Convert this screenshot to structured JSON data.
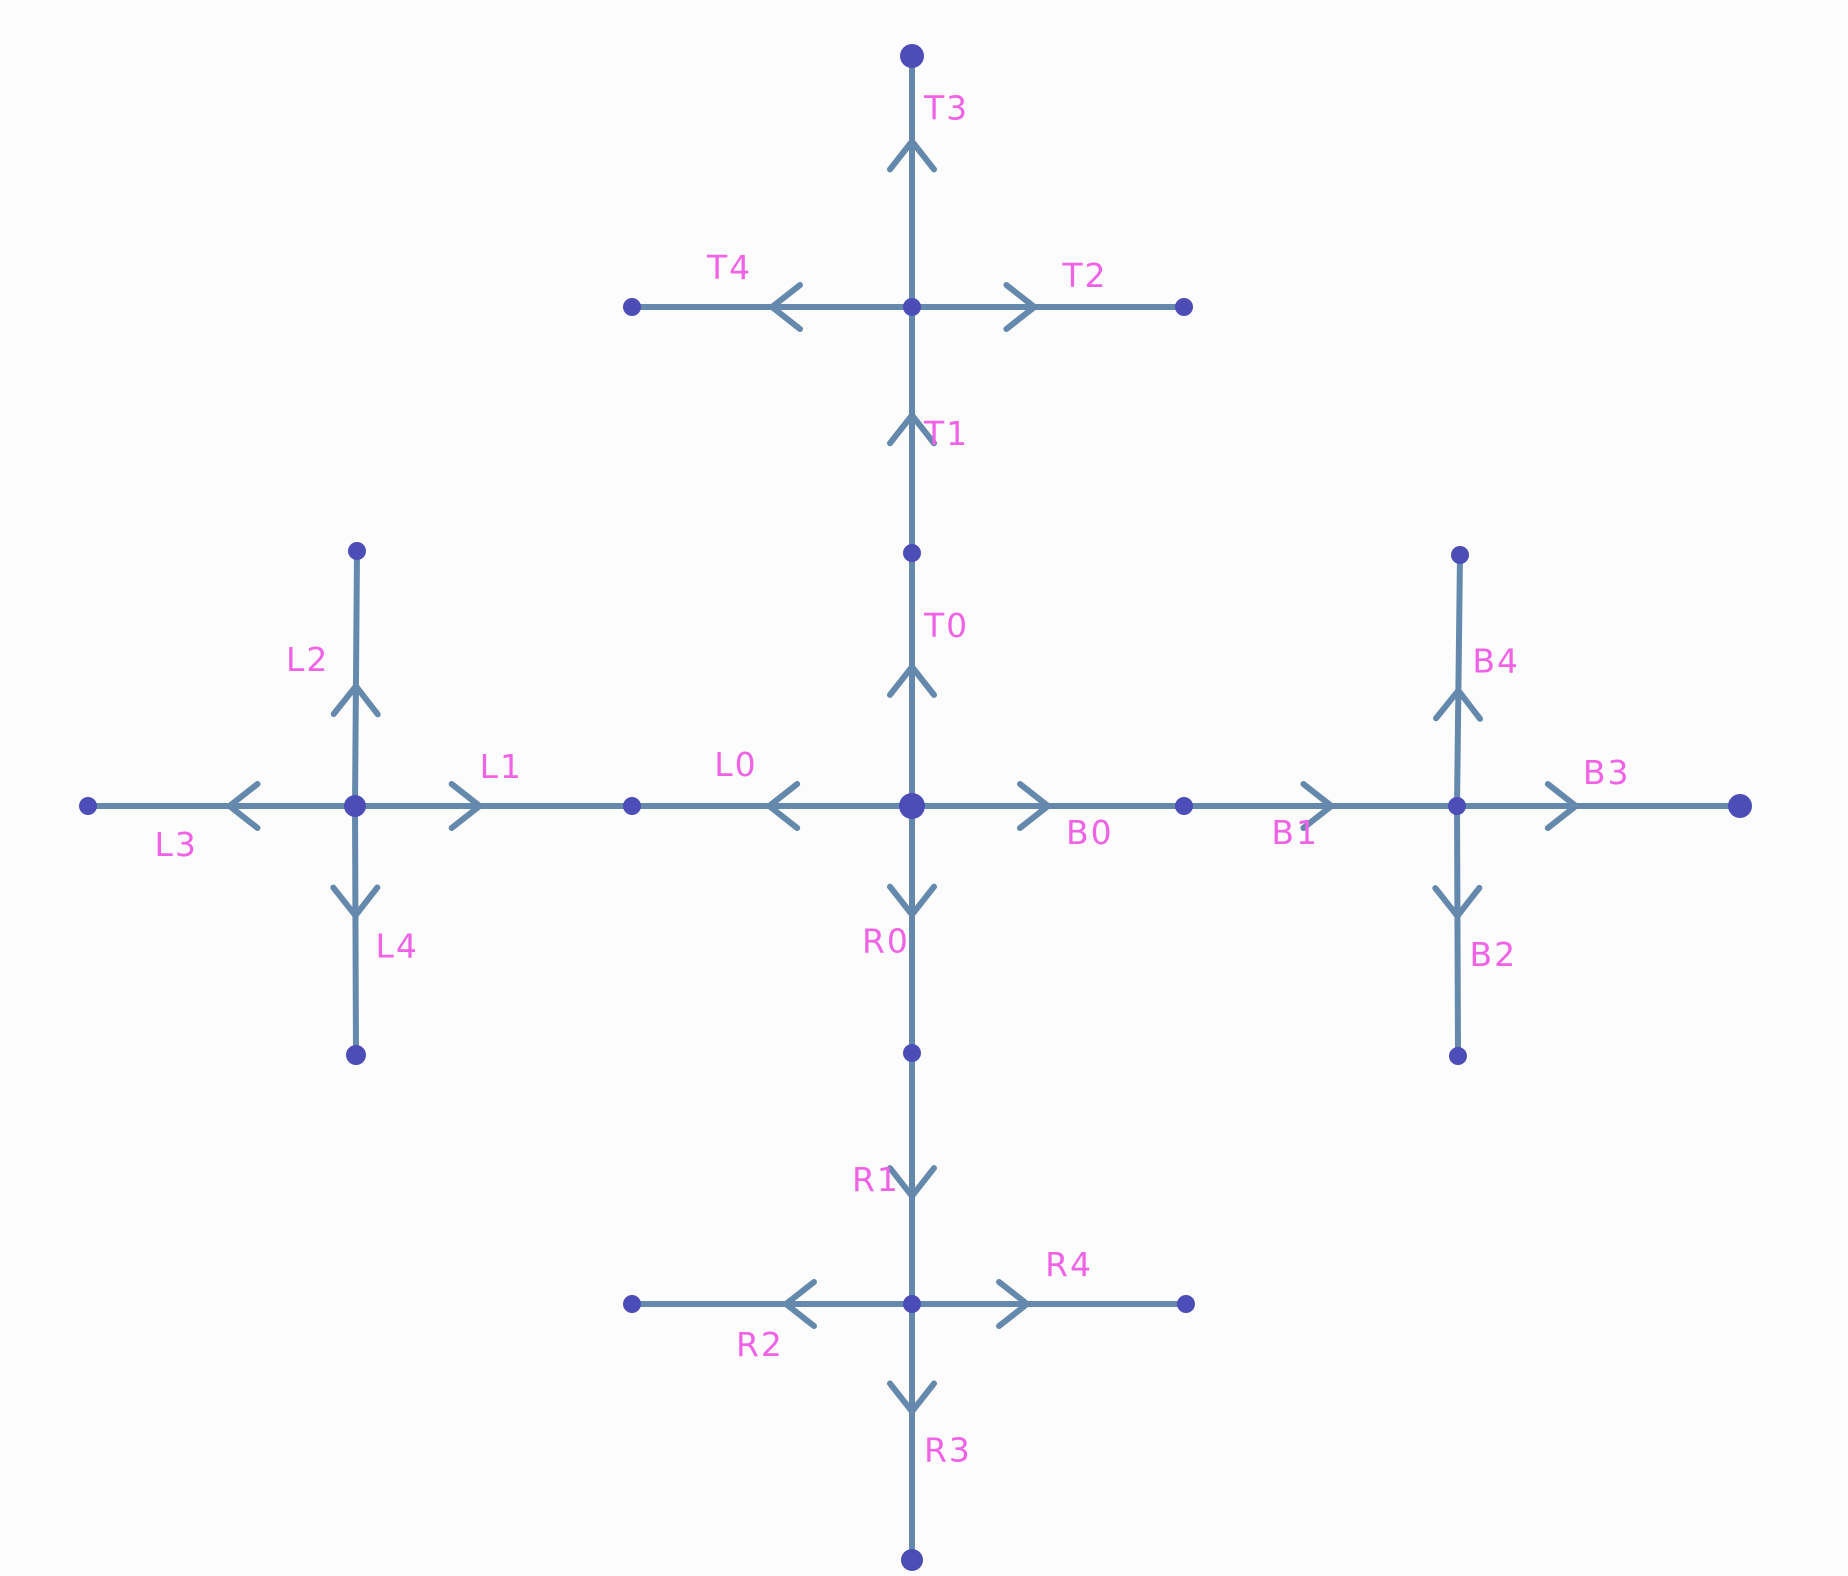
{
  "diagram": {
    "colors": {
      "edge": "#6489ad",
      "node": "#4d4db8",
      "label": "#f062e6",
      "background": "#fcfcfc"
    },
    "nodes": [
      "center",
      "T",
      "Tout",
      "Tup",
      "Tleft",
      "Tright",
      "L",
      "Lout",
      "Lup",
      "Lleft",
      "Ldown",
      "B",
      "Bout",
      "Bup",
      "Bright",
      "Bdown",
      "R",
      "Rout",
      "Rdown",
      "Rleft",
      "Rright"
    ],
    "edges": [
      {
        "id": "T0",
        "label": "T0",
        "from": "center",
        "to": "Tout"
      },
      {
        "id": "T1",
        "label": "T1",
        "from": "T",
        "to": "Tout"
      },
      {
        "id": "T2",
        "label": "T2",
        "from": "T",
        "to": "Tright"
      },
      {
        "id": "T3",
        "label": "T3",
        "from": "T",
        "to": "Tup"
      },
      {
        "id": "T4",
        "label": "T4",
        "from": "T",
        "to": "Tleft"
      },
      {
        "id": "L0",
        "label": "L0",
        "from": "center",
        "to": "Lout"
      },
      {
        "id": "L1",
        "label": "L1",
        "from": "L",
        "to": "Lout"
      },
      {
        "id": "L2",
        "label": "L2",
        "from": "L",
        "to": "Lup"
      },
      {
        "id": "L3",
        "label": "L3",
        "from": "L",
        "to": "Lleft"
      },
      {
        "id": "L4",
        "label": "L4",
        "from": "L",
        "to": "Ldown"
      },
      {
        "id": "B0",
        "label": "B0",
        "from": "center",
        "to": "Bout"
      },
      {
        "id": "B1",
        "label": "B1",
        "from": "B",
        "to": "Bout"
      },
      {
        "id": "B2",
        "label": "B2",
        "from": "B",
        "to": "Bdown"
      },
      {
        "id": "B3",
        "label": "B3",
        "from": "B",
        "to": "Bright"
      },
      {
        "id": "B4",
        "label": "B4",
        "from": "B",
        "to": "Bup"
      },
      {
        "id": "R0",
        "label": "R0",
        "from": "center",
        "to": "Rout"
      },
      {
        "id": "R1",
        "label": "R1",
        "from": "R",
        "to": "Rout"
      },
      {
        "id": "R2",
        "label": "R2",
        "from": "R",
        "to": "Rleft"
      },
      {
        "id": "R3",
        "label": "R3",
        "from": "R",
        "to": "Rdown"
      },
      {
        "id": "R4",
        "label": "R4",
        "from": "R",
        "to": "Rright"
      }
    ]
  }
}
